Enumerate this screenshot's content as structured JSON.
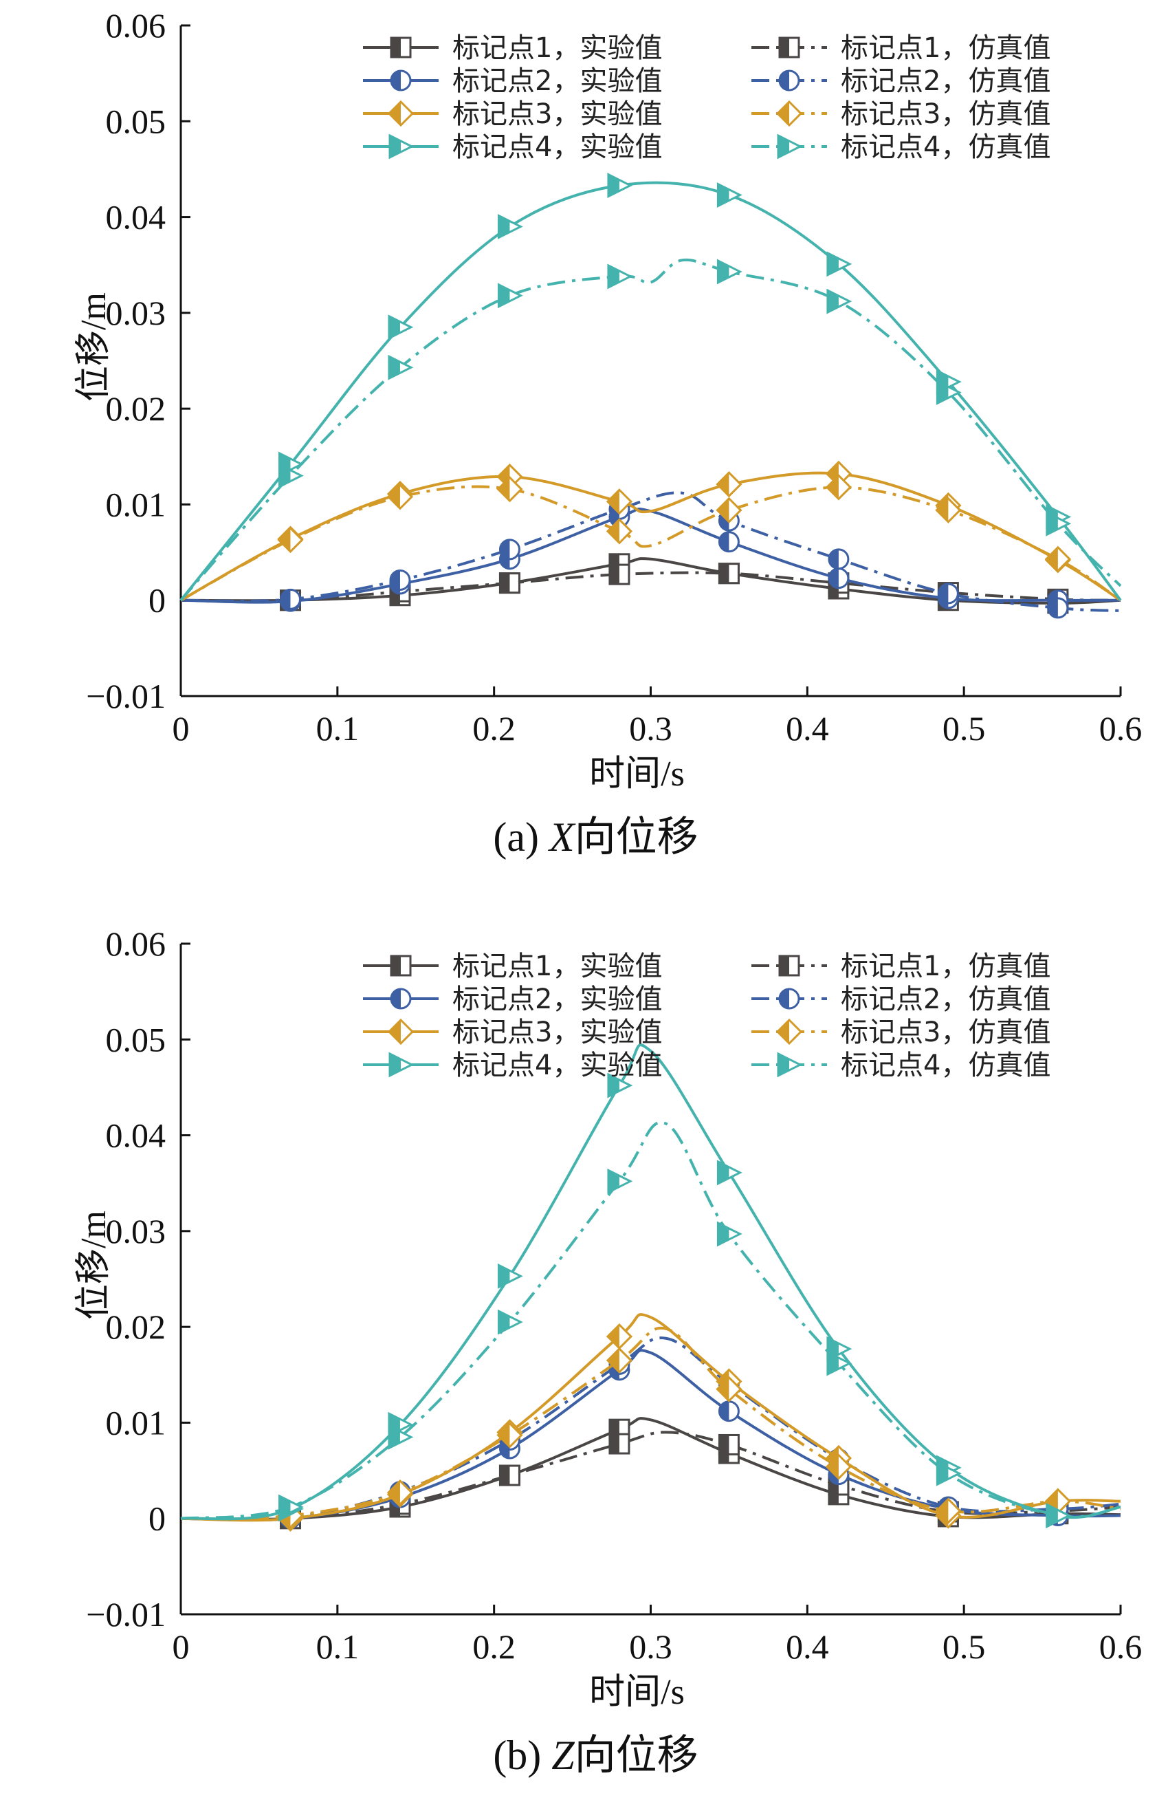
{
  "colors": {
    "p1": "#4a4646",
    "p2": "#3d5fa3",
    "p3": "#d49a28",
    "p4": "#45b3ad"
  },
  "chart_data": [
    {
      "type": "line",
      "caption_prefix": "(a)",
      "caption_var": "X",
      "caption_suffix": "向位移",
      "xlabel": "时间/s",
      "ylabel": "位移/m",
      "xlim": [
        0,
        0.6
      ],
      "ylim": [
        -0.01,
        0.06
      ],
      "xticks": [
        "0",
        "0.1",
        "0.2",
        "0.3",
        "0.4",
        "0.5",
        "0.6"
      ],
      "yticks": [
        "−0.01",
        "0",
        "0.01",
        "0.02",
        "0.03",
        "0.04",
        "0.05",
        "0.06"
      ],
      "legend_position": "top-right",
      "series": [
        {
          "name": "标记点1，实验值",
          "point": 1,
          "kind": "exp",
          "icon": "square-marker-icon",
          "x": [
            0,
            0.07,
            0.14,
            0.21,
            0.28,
            0.3,
            0.35,
            0.42,
            0.49,
            0.56,
            0.6
          ],
          "y": [
            0,
            0,
            0.0005,
            0.0018,
            0.0038,
            0.0043,
            0.0028,
            0.0012,
            0,
            -0.0003,
            0
          ]
        },
        {
          "name": "标记点1，仿真值",
          "point": 1,
          "kind": "sim",
          "icon": "square-marker-icon",
          "x": [
            0,
            0.07,
            0.14,
            0.21,
            0.28,
            0.35,
            0.42,
            0.49,
            0.56,
            0.6
          ],
          "y": [
            0,
            0,
            0.0009,
            0.0018,
            0.0027,
            0.0028,
            0.0018,
            0.0008,
            0.0001,
            0
          ]
        },
        {
          "name": "标记点2，实验值",
          "point": 2,
          "kind": "exp",
          "icon": "circle-marker-icon",
          "x": [
            0,
            0.07,
            0.14,
            0.21,
            0.28,
            0.3,
            0.35,
            0.42,
            0.49,
            0.56,
            0.6
          ],
          "y": [
            0,
            -0.0001,
            0.0017,
            0.0043,
            0.0087,
            0.0093,
            0.0061,
            0.0023,
            0.0002,
            0,
            0
          ]
        },
        {
          "name": "标记点2，仿真值",
          "point": 2,
          "kind": "sim",
          "icon": "circle-marker-icon",
          "x": [
            0,
            0.07,
            0.14,
            0.21,
            0.28,
            0.32,
            0.35,
            0.42,
            0.49,
            0.56,
            0.6
          ],
          "y": [
            0,
            0.0001,
            0.0021,
            0.0053,
            0.0095,
            0.0112,
            0.0083,
            0.0043,
            0.0007,
            -0.0008,
            -0.0011
          ]
        },
        {
          "name": "标记点3，实验值",
          "point": 3,
          "kind": "exp",
          "icon": "diamond-marker-icon",
          "x": [
            0,
            0.07,
            0.14,
            0.21,
            0.28,
            0.3,
            0.35,
            0.42,
            0.49,
            0.56,
            0.6
          ],
          "y": [
            0,
            0.0064,
            0.0111,
            0.0129,
            0.0103,
            0.0093,
            0.0121,
            0.0132,
            0.0099,
            0.0042,
            0
          ]
        },
        {
          "name": "标记点3，仿真值",
          "point": 3,
          "kind": "sim",
          "icon": "diamond-marker-icon",
          "x": [
            0,
            0.07,
            0.14,
            0.21,
            0.28,
            0.3,
            0.35,
            0.42,
            0.49,
            0.56,
            0.6
          ],
          "y": [
            0,
            0.0063,
            0.0108,
            0.0116,
            0.0072,
            0.0057,
            0.0094,
            0.0118,
            0.0094,
            0.0043,
            0
          ]
        },
        {
          "name": "标记点4，实验值",
          "point": 4,
          "kind": "exp",
          "icon": "triangle-marker-icon",
          "x": [
            0,
            0.07,
            0.14,
            0.21,
            0.28,
            0.35,
            0.42,
            0.49,
            0.56,
            0.6
          ],
          "y": [
            0,
            0.0142,
            0.0285,
            0.039,
            0.0433,
            0.0423,
            0.0351,
            0.0228,
            0.0087,
            0
          ]
        },
        {
          "name": "标记点4，仿真值",
          "point": 4,
          "kind": "sim",
          "icon": "triangle-marker-icon",
          "x": [
            0,
            0.07,
            0.14,
            0.21,
            0.28,
            0.3,
            0.32,
            0.35,
            0.42,
            0.49,
            0.56,
            0.6
          ],
          "y": [
            0,
            0.013,
            0.0243,
            0.0318,
            0.0338,
            0.0332,
            0.0355,
            0.0343,
            0.0312,
            0.0217,
            0.008,
            0.0015
          ]
        }
      ]
    },
    {
      "type": "line",
      "caption_prefix": "(b)",
      "caption_var": "Z",
      "caption_suffix": "向位移",
      "xlabel": "时间/s",
      "ylabel": "位移/m",
      "xlim": [
        0,
        0.6
      ],
      "ylim": [
        -0.01,
        0.06
      ],
      "xticks": [
        "0",
        "0.1",
        "0.2",
        "0.3",
        "0.4",
        "0.5",
        "0.6"
      ],
      "yticks": [
        "−0.01",
        "0",
        "0.01",
        "0.02",
        "0.03",
        "0.04",
        "0.05",
        "0.06"
      ],
      "legend_position": "top-right",
      "series": [
        {
          "name": "标记点1，实验值",
          "point": 1,
          "kind": "exp",
          "icon": "square-marker-icon",
          "x": [
            0,
            0.07,
            0.14,
            0.21,
            0.28,
            0.3,
            0.35,
            0.42,
            0.49,
            0.56,
            0.6
          ],
          "y": [
            0,
            0,
            0.0012,
            0.0045,
            0.0093,
            0.0103,
            0.0068,
            0.0025,
            0.0002,
            0.0005,
            0.0004
          ]
        },
        {
          "name": "标记点1，仿真值",
          "point": 1,
          "kind": "sim",
          "icon": "square-marker-icon",
          "x": [
            0,
            0.07,
            0.14,
            0.21,
            0.28,
            0.31,
            0.35,
            0.42,
            0.49,
            0.56,
            0.6
          ],
          "y": [
            0,
            0,
            0.0015,
            0.0045,
            0.0078,
            0.009,
            0.0077,
            0.0035,
            0.0007,
            0.0008,
            0.0012
          ]
        },
        {
          "name": "标记点2，实验值",
          "point": 2,
          "kind": "exp",
          "icon": "circle-marker-icon",
          "x": [
            0,
            0.07,
            0.14,
            0.21,
            0.28,
            0.3,
            0.35,
            0.42,
            0.49,
            0.56,
            0.6
          ],
          "y": [
            0,
            0,
            0.0022,
            0.0073,
            0.0155,
            0.0173,
            0.0112,
            0.0046,
            0.001,
            0.0003,
            0.0003
          ]
        },
        {
          "name": "标记点2，仿真值",
          "point": 2,
          "kind": "sim",
          "icon": "circle-marker-icon",
          "x": [
            0,
            0.07,
            0.14,
            0.21,
            0.28,
            0.31,
            0.35,
            0.42,
            0.49,
            0.56,
            0.6
          ],
          "y": [
            0,
            0.0001,
            0.0028,
            0.0082,
            0.0161,
            0.0188,
            0.0141,
            0.0062,
            0.0012,
            0.001,
            0.0015
          ]
        },
        {
          "name": "标记点3，实验值",
          "point": 3,
          "kind": "exp",
          "icon": "diamond-marker-icon",
          "x": [
            0,
            0.07,
            0.14,
            0.21,
            0.28,
            0.3,
            0.35,
            0.42,
            0.49,
            0.56,
            0.6
          ],
          "y": [
            0,
            0,
            0.0025,
            0.009,
            0.019,
            0.021,
            0.0143,
            0.0063,
            0.0003,
            0.0018,
            0.0018
          ]
        },
        {
          "name": "标记点3，仿真值",
          "point": 3,
          "kind": "sim",
          "icon": "diamond-marker-icon",
          "x": [
            0,
            0.07,
            0.14,
            0.21,
            0.28,
            0.31,
            0.35,
            0.42,
            0.49,
            0.56,
            0.6
          ],
          "y": [
            0,
            0.0003,
            0.0027,
            0.0087,
            0.0165,
            0.0198,
            0.0135,
            0.0054,
            0.0008,
            0.0018,
            0.001
          ]
        },
        {
          "name": "标记点4，实验值",
          "point": 4,
          "kind": "exp",
          "icon": "triangle-marker-icon",
          "x": [
            0,
            0.07,
            0.14,
            0.21,
            0.28,
            0.3,
            0.35,
            0.42,
            0.49,
            0.56,
            0.6
          ],
          "y": [
            0,
            0.001,
            0.0098,
            0.0253,
            0.0452,
            0.0488,
            0.0361,
            0.0177,
            0.0053,
            0.0003,
            0.0012
          ]
        },
        {
          "name": "标记点4，仿真值",
          "point": 4,
          "kind": "sim",
          "icon": "triangle-marker-icon",
          "x": [
            0,
            0.07,
            0.14,
            0.21,
            0.28,
            0.31,
            0.35,
            0.42,
            0.49,
            0.56,
            0.6
          ],
          "y": [
            0,
            0.0012,
            0.0085,
            0.0205,
            0.0352,
            0.0412,
            0.0297,
            0.0162,
            0.0047,
            0.0003,
            0.0012
          ]
        }
      ]
    }
  ]
}
